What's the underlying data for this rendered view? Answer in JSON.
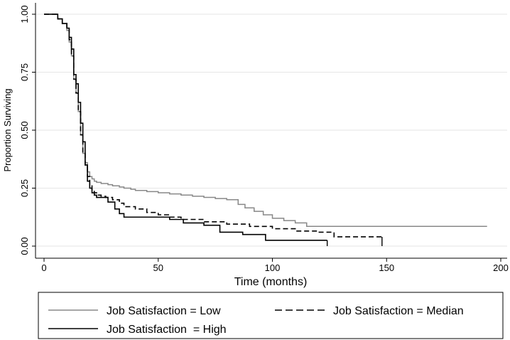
{
  "chart_data": {
    "type": "line",
    "subtype": "step",
    "title": "",
    "xlabel": "Time (months)",
    "ylabel": "Proportion Surviving",
    "xlim": [
      0,
      200
    ],
    "ylim": [
      0,
      1
    ],
    "x_ticks": [
      0,
      50,
      100,
      150,
      200
    ],
    "x_tick_labels": [
      "0",
      "50",
      "100",
      "150",
      "200"
    ],
    "y_ticks": [
      0,
      0.25,
      0.5,
      0.75,
      1
    ],
    "y_tick_labels": [
      "0.00",
      "0.25",
      "0.50",
      "0.75",
      "1.00"
    ],
    "grid": true,
    "legend_position": "bottom",
    "series": [
      {
        "name": "Job Satisfaction = Low",
        "color": "#888888",
        "dash": "solid",
        "x": [
          0,
          6,
          8,
          10,
          11,
          12,
          13,
          14,
          15,
          16,
          17,
          18,
          19,
          20,
          21,
          22,
          23,
          25,
          28,
          30,
          33,
          35,
          38,
          40,
          45,
          50,
          55,
          60,
          65,
          70,
          75,
          80,
          85,
          88,
          92,
          96,
          100,
          105,
          110,
          115,
          194
        ],
        "y": [
          1.0,
          0.98,
          0.96,
          0.93,
          0.88,
          0.82,
          0.72,
          0.66,
          0.58,
          0.48,
          0.4,
          0.36,
          0.32,
          0.3,
          0.29,
          0.28,
          0.275,
          0.27,
          0.265,
          0.26,
          0.255,
          0.25,
          0.245,
          0.24,
          0.235,
          0.23,
          0.225,
          0.22,
          0.215,
          0.21,
          0.205,
          0.2,
          0.18,
          0.165,
          0.15,
          0.135,
          0.12,
          0.11,
          0.1,
          0.085,
          0.085
        ]
      },
      {
        "name": "Job Satisfaction = Median",
        "color": "#000000",
        "dash": "dashed",
        "x": [
          0,
          6,
          8,
          10,
          11,
          12,
          13,
          14,
          15,
          16,
          17,
          18,
          19,
          20,
          21,
          22,
          23,
          25,
          27,
          30,
          33,
          35,
          40,
          45,
          50,
          55,
          60,
          70,
          80,
          90,
          100,
          110,
          120,
          127,
          148
        ],
        "y": [
          1.0,
          0.98,
          0.96,
          0.94,
          0.89,
          0.82,
          0.72,
          0.66,
          0.58,
          0.48,
          0.4,
          0.35,
          0.3,
          0.26,
          0.24,
          0.23,
          0.22,
          0.215,
          0.21,
          0.2,
          0.185,
          0.17,
          0.16,
          0.145,
          0.135,
          0.125,
          0.115,
          0.105,
          0.095,
          0.085,
          0.075,
          0.065,
          0.06,
          0.04,
          0.04
        ]
      },
      {
        "name": "Job Satisfaction  = High",
        "color": "#000000",
        "dash": "solid",
        "x": [
          0,
          6,
          8,
          10,
          11,
          12,
          13,
          14,
          15,
          16,
          17,
          18,
          19,
          20,
          21,
          22,
          23,
          28,
          31,
          33,
          35,
          45,
          50,
          55,
          61,
          70,
          77,
          87,
          97,
          124
        ],
        "y": [
          1.0,
          0.98,
          0.96,
          0.94,
          0.9,
          0.85,
          0.74,
          0.7,
          0.62,
          0.53,
          0.45,
          0.35,
          0.28,
          0.25,
          0.23,
          0.22,
          0.21,
          0.19,
          0.16,
          0.14,
          0.125,
          0.125,
          0.125,
          0.115,
          0.1,
          0.09,
          0.06,
          0.05,
          0.025,
          0.025
        ]
      }
    ]
  }
}
